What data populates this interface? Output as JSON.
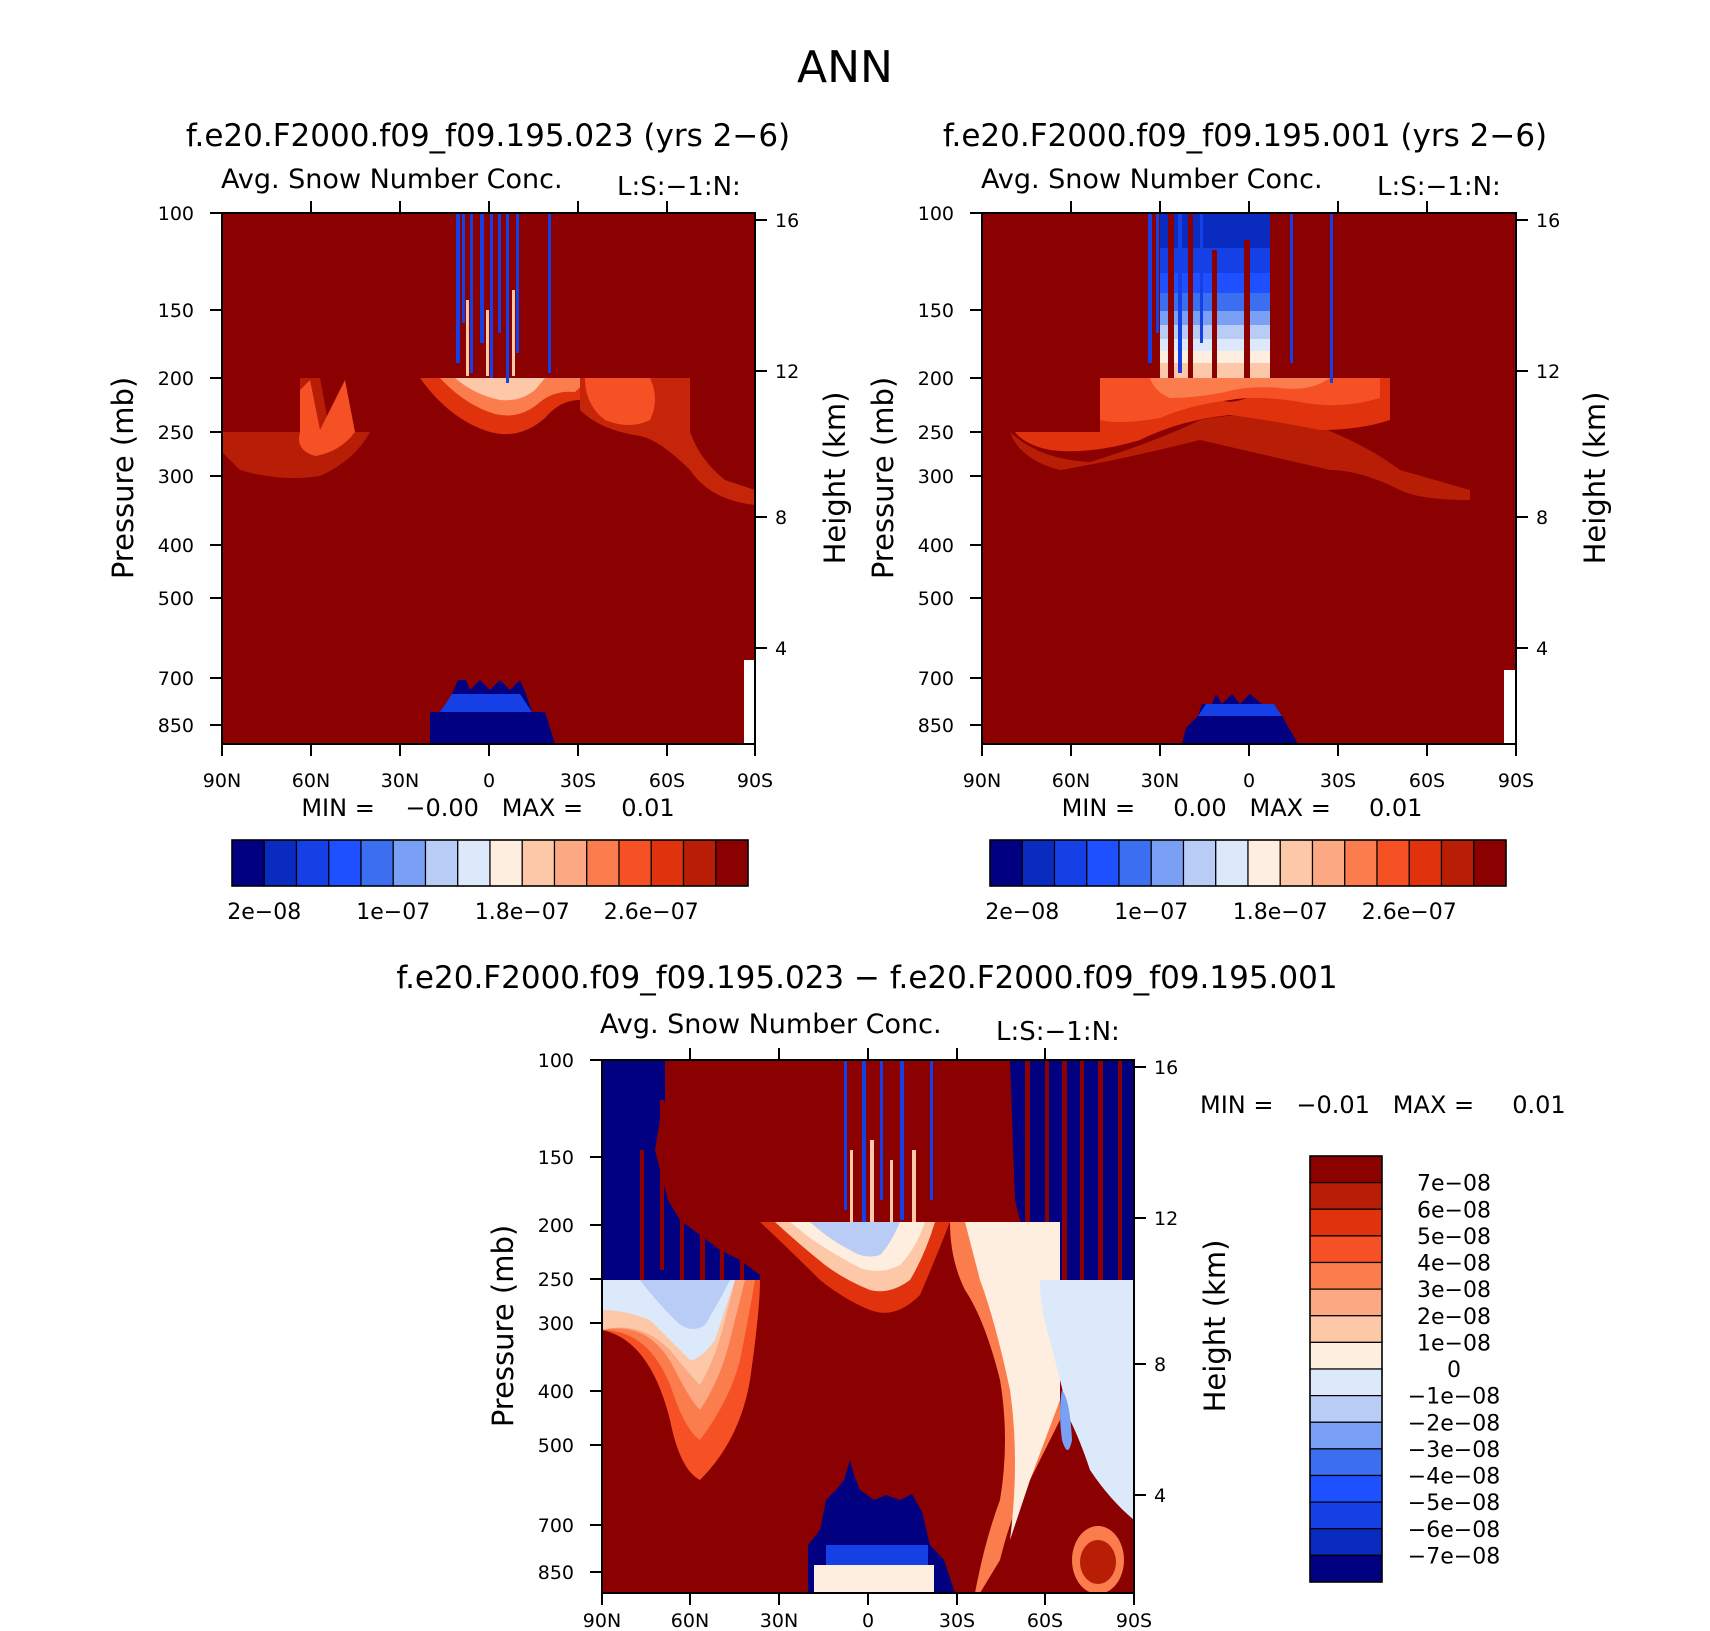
{
  "main_title": "ANN",
  "colors": {
    "dark_red": "#8b0000",
    "dark_blue": "#000080",
    "frame": "#000000"
  },
  "icons": [],
  "chart_data": [
    {
      "type": "heatmap",
      "id": "test",
      "case_title": "f.e20.F2000.f09_f09.195.023 (yrs 2−6)",
      "var_title": "Avg. Snow Number Conc.",
      "units_label": "L:S:−1:N:",
      "ylabel": "Pressure (mb)",
      "ylabel_right": "Height (km)",
      "x_ticks": [
        "90N",
        "60N",
        "30N",
        "0",
        "30S",
        "60S",
        "90S"
      ],
      "y_ticks": [
        "100",
        "150",
        "200",
        "250",
        "300",
        "400",
        "500",
        "700",
        "850"
      ],
      "y_ticks_right": [
        "16",
        "12",
        "8",
        "4"
      ],
      "min_max": "MIN =    −0.00   MAX =     0.01",
      "colorbar": {
        "orientation": "horizontal",
        "colors": [
          "#000080",
          "#0a2bbf",
          "#1440e6",
          "#1e50ff",
          "#3c6ef0",
          "#7aa0f5",
          "#b8ccf5",
          "#dbe9fb",
          "#feeee0",
          "#fcc8a8",
          "#fca882",
          "#fb7c4c",
          "#f55125",
          "#e0320c",
          "#b81e06",
          "#8b0000"
        ],
        "labels": [
          "2e−08",
          "1e−07",
          "1.8e−07",
          "2.6e−07"
        ]
      },
      "features": {
        "tropopause_band_pressure_mb": [
          200,
          250
        ],
        "low_level_blue_lat_range": [
          -20,
          22
        ],
        "low_level_blue_top_mb": 720,
        "upper_blue_streaks_lat_range": [
          -3,
          22
        ]
      }
    },
    {
      "type": "heatmap",
      "id": "control",
      "case_title": "f.e20.F2000.f09_f09.195.001 (yrs 2−6)",
      "var_title": "Avg. Snow Number Conc.",
      "units_label": "L:S:−1:N:",
      "ylabel": "Pressure (mb)",
      "ylabel_right": "Height (km)",
      "x_ticks": [
        "90N",
        "60N",
        "30N",
        "0",
        "30S",
        "60S",
        "90S"
      ],
      "y_ticks": [
        "100",
        "150",
        "200",
        "250",
        "300",
        "400",
        "500",
        "700",
        "850"
      ],
      "y_ticks_right": [
        "16",
        "12",
        "8",
        "4"
      ],
      "min_max": "MIN =     0.00   MAX =     0.01",
      "colorbar": {
        "orientation": "horizontal",
        "colors": [
          "#000080",
          "#0a2bbf",
          "#1440e6",
          "#1e50ff",
          "#3c6ef0",
          "#7aa0f5",
          "#b8ccf5",
          "#dbe9fb",
          "#feeee0",
          "#fcc8a8",
          "#fca882",
          "#fb7c4c",
          "#f55125",
          "#e0320c",
          "#b81e06",
          "#8b0000"
        ],
        "labels": [
          "2e−08",
          "1e−07",
          "1.8e−07",
          "2.6e−07"
        ]
      },
      "features": {
        "tropical_upper_blue_lat_range": [
          -15,
          22
        ],
        "low_level_blue_lat_range": [
          -20,
          18
        ],
        "low_level_blue_top_mb": 740
      }
    },
    {
      "type": "heatmap",
      "id": "difference",
      "case_title": "f.e20.F2000.f09_f09.195.023 − f.e20.F2000.f09_f09.195.001",
      "var_title": "Avg. Snow Number Conc.",
      "units_label": "L:S:−1:N:",
      "ylabel": "Pressure (mb)",
      "ylabel_right": "Height (km)",
      "x_ticks": [
        "90N",
        "60N",
        "30N",
        "0",
        "30S",
        "60S",
        "90S"
      ],
      "y_ticks": [
        "100",
        "150",
        "200",
        "250",
        "300",
        "400",
        "500",
        "700",
        "850"
      ],
      "y_ticks_right": [
        "16",
        "12",
        "8",
        "4"
      ],
      "min_max": "MIN =   −0.01   MAX =     0.01",
      "colorbar": {
        "orientation": "vertical",
        "colors": [
          "#8b0000",
          "#b81e06",
          "#e0320c",
          "#f55125",
          "#fb7c4c",
          "#fca882",
          "#fcc8a8",
          "#feeee0",
          "#dbe9fb",
          "#b8ccf5",
          "#7aa0f5",
          "#3c6ef0",
          "#1e50ff",
          "#1440e6",
          "#0a2bbf",
          "#000080"
        ],
        "labels": [
          "7e−08",
          "6e−08",
          "5e−08",
          "4e−08",
          "3e−08",
          "2e−08",
          "1e−08",
          "0",
          "−1e−08",
          "−2e−08",
          "−3e−08",
          "−4e−08",
          "−5e−08",
          "−6e−08",
          "−7e−08"
        ]
      },
      "features": {
        "nh_upper_blue_lat_range": [
          60,
          90
        ],
        "sh_upper_blue_lat_range": [
          -60,
          -90
        ],
        "low_level_blue_lat_range": [
          -15,
          13
        ],
        "low_level_blue_top_mb": 690
      }
    }
  ]
}
